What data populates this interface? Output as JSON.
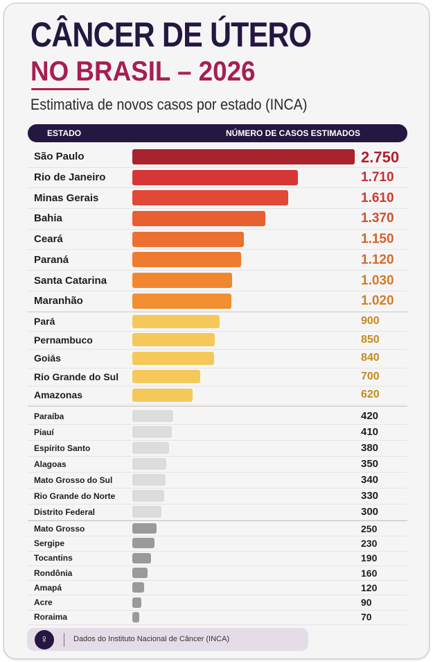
{
  "title_line1": "CÂNCER DE ÚTERO",
  "title_line2": "NO BRASIL – 2026",
  "subtitle": "Estimativa de novos casos por estado (INCA)",
  "table_header": {
    "col_state": "ESTADO",
    "col_cases": "NÚMERO DE CASOS ESTIMADOS"
  },
  "footer": {
    "icon": "uterus-icon",
    "source": "Dados do Instituto Nacional de Câncer (INCA)"
  },
  "chart_data": {
    "type": "bar",
    "orientation": "horizontal",
    "groups": [
      {
        "bar_color": "#ea6a30",
        "value_color": "#c73a25",
        "categories": [
          "São Paulo",
          "Rio de Janeiro",
          "Minas Gerais",
          "Bahia",
          "Ceará",
          "Paraná",
          "Santa Catarina",
          "Maranhão"
        ],
        "values": [
          2750,
          1710,
          1610,
          1370,
          1150,
          1120,
          1030,
          1020
        ],
        "value_labels": [
          "2.750",
          "1.710",
          "1.610",
          "1.370",
          "1.150",
          "1.120",
          "1.030",
          "1.020"
        ],
        "bar_colors": [
          "#a8232d",
          "#d83536",
          "#e14835",
          "#e8602f",
          "#ec7130",
          "#ee7b2f",
          "#f0872f",
          "#f18f32"
        ],
        "value_colors": [
          "#b01f2c",
          "#c92c2c",
          "#cf3a2a",
          "#d24f28",
          "#d5612a",
          "#d86a28",
          "#d47a26",
          "#d17f28"
        ]
      },
      {
        "bar_color": "#f4c95a",
        "value_color": "#c48a1c",
        "categories": [
          "Pará",
          "Pernambuco",
          "Goiás",
          "Rio Grande do Sul",
          "Amazonas"
        ],
        "values": [
          900,
          850,
          840,
          700,
          620
        ],
        "value_labels": [
          "900",
          "850",
          "840",
          "700",
          "620"
        ]
      },
      {
        "bar_color": "#dcdcdc",
        "value_color": "#1d1d1d",
        "categories": [
          "Paraíba",
          "Piauí",
          "Espírito Santo",
          "Alagoas",
          "Mato Grosso do Sul",
          "Rio Grande do Norte",
          "Distrito Federal"
        ],
        "values": [
          420,
          410,
          380,
          350,
          340,
          330,
          300
        ],
        "value_labels": [
          "420",
          "410",
          "380",
          "350",
          "340",
          "330",
          "300"
        ]
      },
      {
        "bar_color": "#9a9a9a",
        "value_color": "#1d1d1d",
        "categories": [
          "Mato Grosso",
          "Sergipe",
          "Tocantins",
          "Rondônia",
          "Amapá",
          "Acre",
          "Roraima"
        ],
        "values": [
          250,
          230,
          190,
          160,
          120,
          90,
          70
        ],
        "value_labels": [
          "250",
          "230",
          "190",
          "160",
          "120",
          "90",
          "70"
        ]
      }
    ]
  }
}
